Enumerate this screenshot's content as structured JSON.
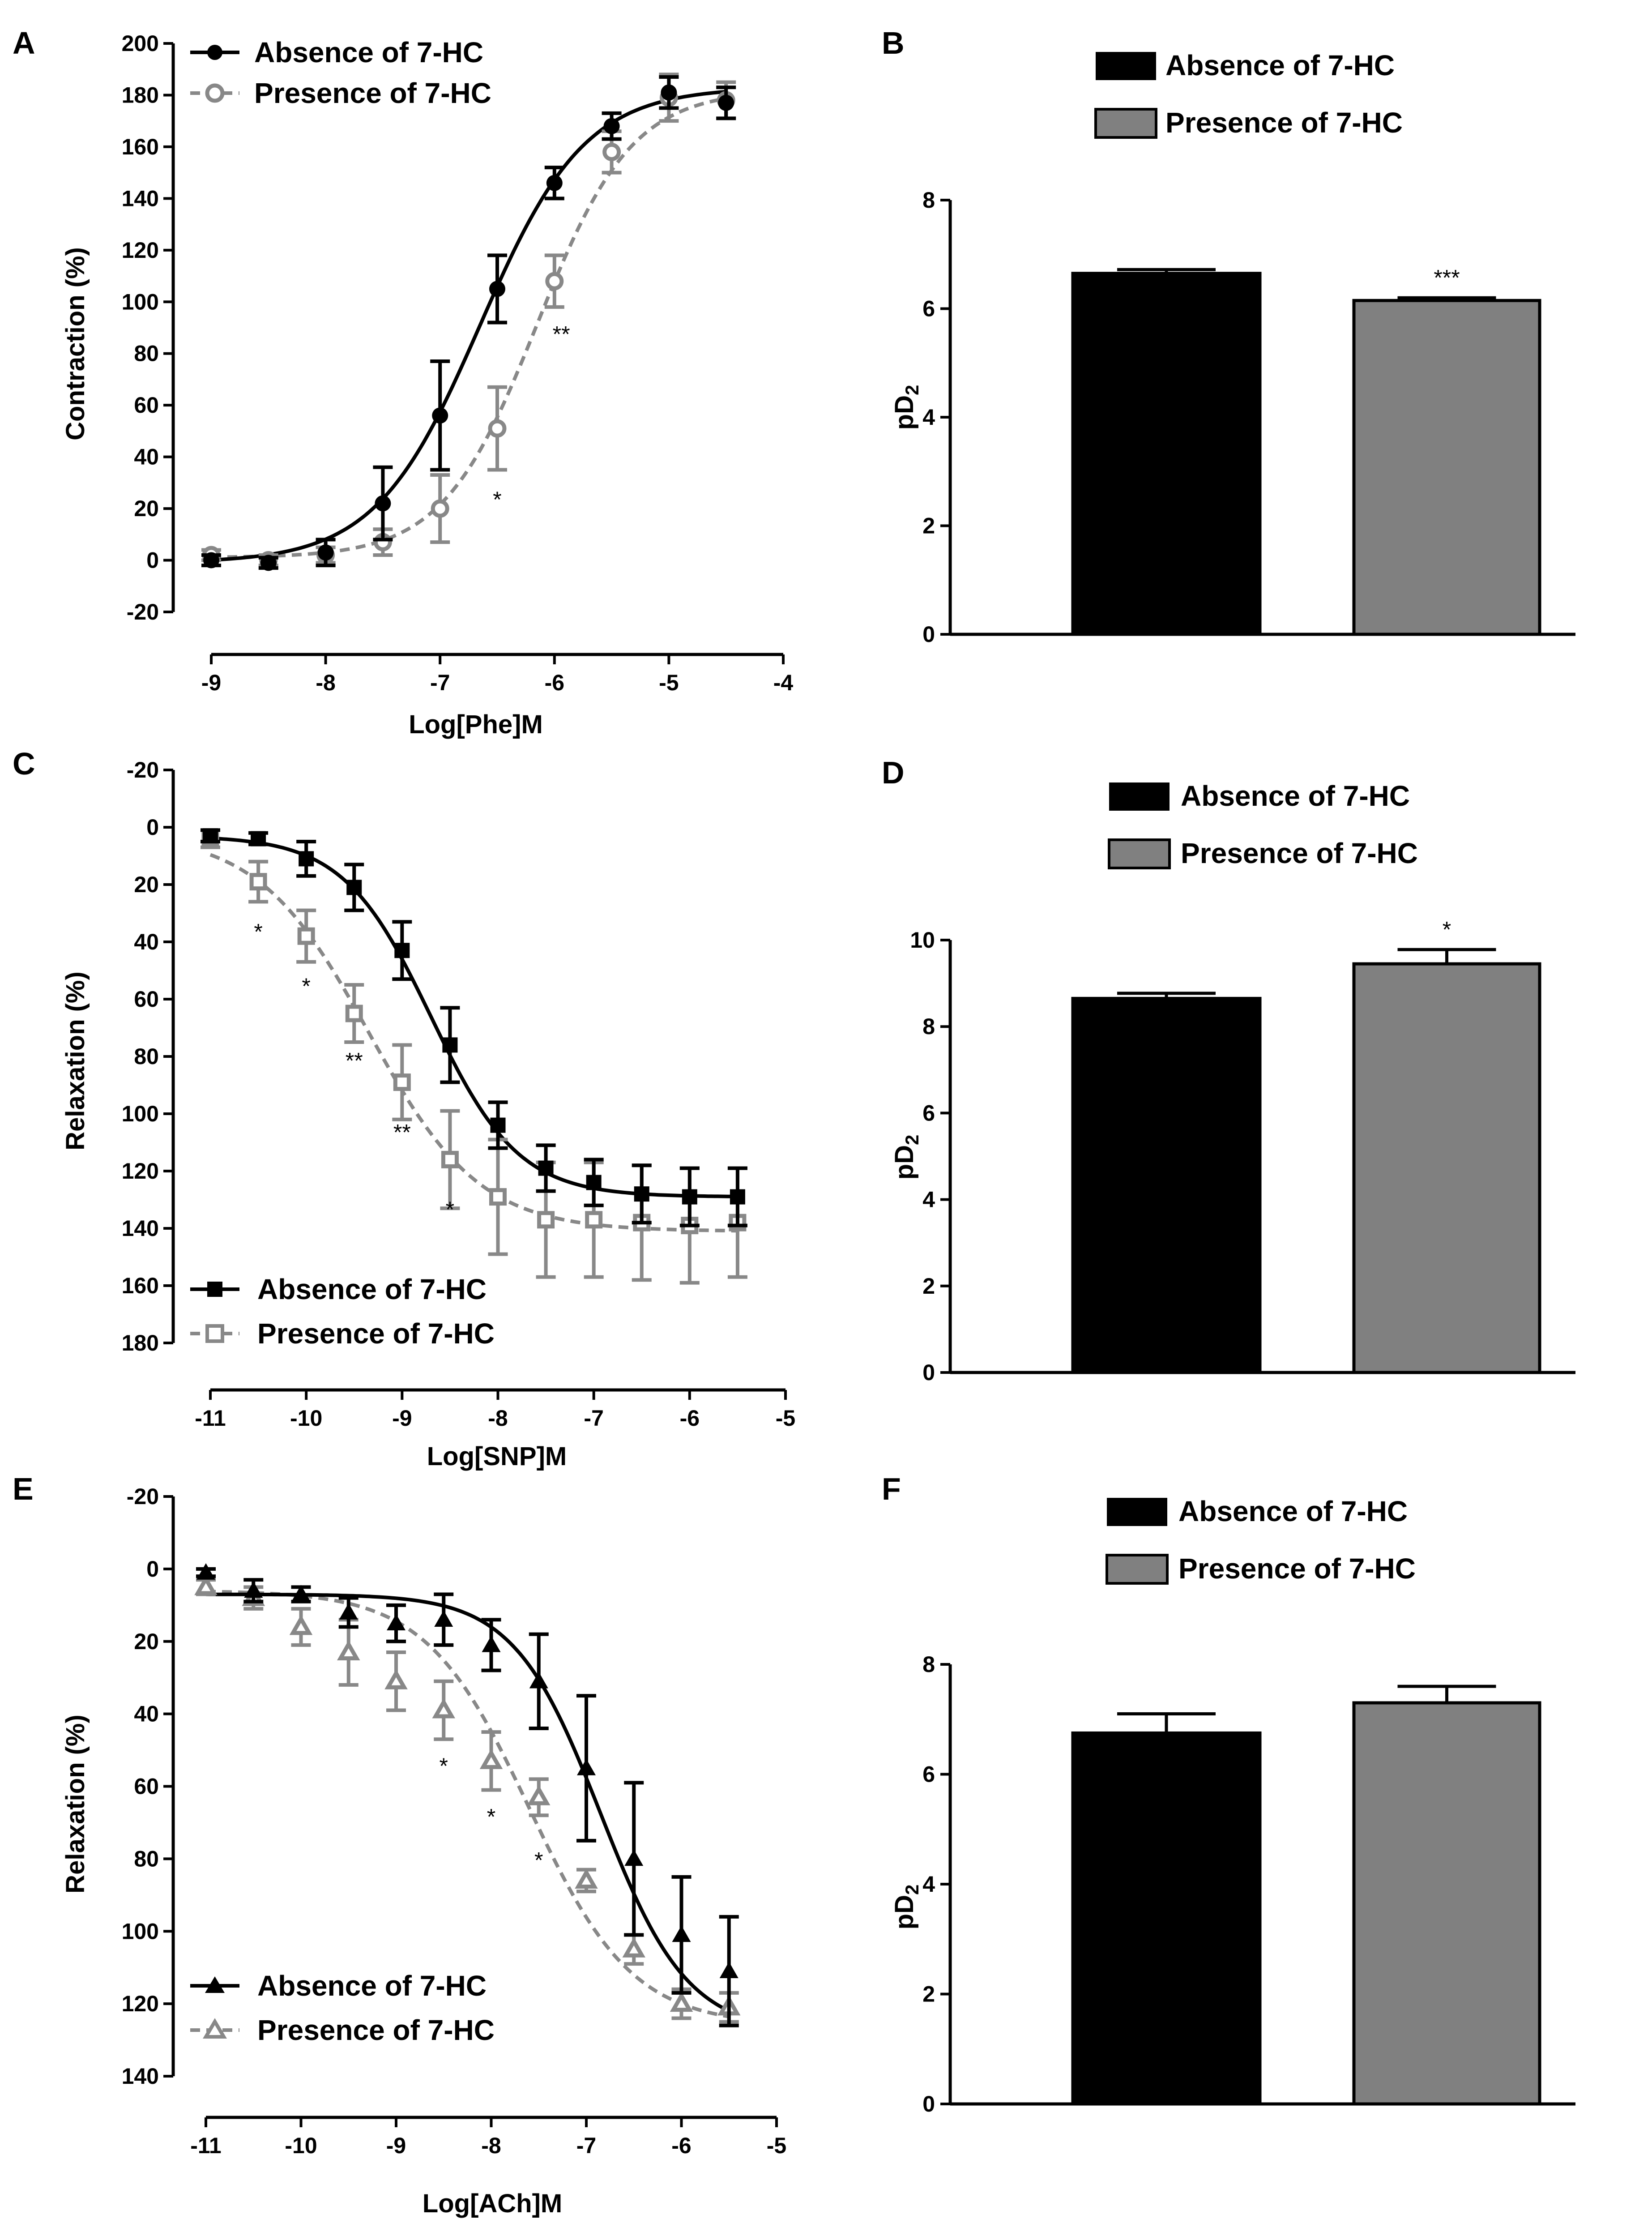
{
  "chart_data": [
    {
      "panel": "A",
      "type": "line",
      "xlabel": "Log[Phe]M",
      "ylabel": "Contraction (%)",
      "xlim": [
        -9,
        -4
      ],
      "ylim": [
        -20,
        200
      ],
      "xticks": [
        -9,
        -8,
        -7,
        -6,
        -5,
        -4
      ],
      "yticks": [
        -20,
        0,
        20,
        40,
        60,
        80,
        100,
        120,
        140,
        160,
        180,
        200
      ],
      "invert_y": false,
      "legend_position": "top-left",
      "series": [
        {
          "name": "Absence of 7-HC",
          "color": "#000000",
          "marker": "filled-circle",
          "dashed": false,
          "x": [
            -9,
            -8.5,
            -8,
            -7.5,
            -7,
            -6.5,
            -6,
            -5.5,
            -5,
            -4.5
          ],
          "y": [
            0,
            -1,
            3,
            22,
            56,
            105,
            146,
            168,
            181,
            177
          ],
          "err": [
            2,
            2,
            5,
            14,
            21,
            13,
            6,
            5,
            6,
            6
          ],
          "fit": {
            "bottom": -1,
            "top": 183,
            "logEC50": -6.65,
            "hill": 0.95
          }
        },
        {
          "name": "Presence of 7-HC",
          "color": "#888888",
          "marker": "open-circle",
          "dashed": true,
          "x": [
            -9,
            -8.5,
            -8,
            -7.5,
            -7,
            -6.5,
            -6,
            -5.5,
            -5,
            -4.5
          ],
          "y": [
            2,
            0,
            2,
            7,
            20,
            51,
            108,
            158,
            179,
            178
          ],
          "err": [
            2,
            2,
            3,
            5,
            13,
            16,
            10,
            8,
            9,
            7
          ],
          "fit": {
            "bottom": 1,
            "top": 182,
            "logEC50": -6.15,
            "hill": 1.05
          }
        }
      ],
      "annotations": [
        {
          "x": -6.5,
          "y": 24,
          "text": "*"
        },
        {
          "x": -5.94,
          "y": 88,
          "text": "**"
        }
      ]
    },
    {
      "panel": "B",
      "type": "bar",
      "ylabel": "pD2",
      "ylim": [
        0,
        8
      ],
      "yticks": [
        0,
        2,
        4,
        6,
        8
      ],
      "legend_position": "top",
      "bars": [
        {
          "name": "Absence of 7-HC",
          "value": 6.65,
          "err": 0.07,
          "color": "#000000"
        },
        {
          "name": "Presence of 7-HC",
          "value": 6.15,
          "err": 0.05,
          "color": "#808080",
          "sig": "***"
        }
      ]
    },
    {
      "panel": "C",
      "type": "line",
      "xlabel": "Log[SNP]M",
      "ylabel": "Relaxation (%)",
      "xlim": [
        -11,
        -5
      ],
      "ylim": [
        -20,
        180
      ],
      "xticks": [
        -11,
        -10,
        -9,
        -8,
        -7,
        -6,
        -5
      ],
      "yticks": [
        -20,
        0,
        20,
        40,
        60,
        80,
        100,
        120,
        140,
        160,
        180
      ],
      "invert_y": true,
      "legend_position": "bottom-left",
      "series": [
        {
          "name": "Absence of 7-HC",
          "color": "#000000",
          "marker": "filled-square",
          "dashed": false,
          "x": [
            -11,
            -10.5,
            -10,
            -9.5,
            -9,
            -8.5,
            -8,
            -7.5,
            -7,
            -6.5,
            -6,
            -5.5
          ],
          "y": [
            3,
            4,
            11,
            21,
            43,
            76,
            104,
            119,
            124,
            128,
            129,
            129
          ],
          "err": [
            2,
            2,
            6,
            8,
            10,
            13,
            8,
            8,
            8,
            10,
            10,
            10
          ],
          "fit": {
            "bottom": 3,
            "top": 129,
            "logEC50": -8.7,
            "hill": 0.95
          }
        },
        {
          "name": "Presence of 7-HC",
          "color": "#888888",
          "marker": "open-square",
          "dashed": true,
          "x": [
            -11,
            -10.5,
            -10,
            -9.5,
            -9,
            -8.5,
            -8,
            -7.5,
            -7,
            -6.5,
            -6,
            -5.5
          ],
          "y": [
            4,
            19,
            38,
            65,
            89,
            116,
            129,
            137,
            137,
            138,
            139,
            138
          ],
          "err": [
            3,
            7,
            9,
            10,
            13,
            17,
            20,
            20,
            20,
            20,
            20,
            19
          ],
          "fit": {
            "bottom": 2,
            "top": 141,
            "logEC50": -9.35,
            "hill": 0.75
          }
        }
      ],
      "annotations": [
        {
          "x": -10.5,
          "y": 36,
          "text": "*"
        },
        {
          "x": -10,
          "y": 55,
          "text": "*"
        },
        {
          "x": -9.5,
          "y": 81,
          "text": "**"
        },
        {
          "x": -9,
          "y": 106,
          "text": "**"
        },
        {
          "x": -8.5,
          "y": 133,
          "text": "*"
        }
      ]
    },
    {
      "panel": "D",
      "type": "bar",
      "ylabel": "pD2",
      "ylim": [
        0,
        10
      ],
      "yticks": [
        0,
        2,
        4,
        6,
        8,
        10
      ],
      "legend_position": "top",
      "bars": [
        {
          "name": "Absence of 7-HC",
          "value": 8.65,
          "err": 0.12,
          "color": "#000000"
        },
        {
          "name": "Presence of 7-HC",
          "value": 9.45,
          "err": 0.33,
          "color": "#808080",
          "sig": "*"
        }
      ]
    },
    {
      "panel": "E",
      "type": "line",
      "xlabel": "Log[ACh]M",
      "ylabel": "Relaxation (%)",
      "xlim": [
        -11,
        -5
      ],
      "ylim": [
        -20,
        140
      ],
      "xticks": [
        -11,
        -10,
        -9,
        -8,
        -7,
        -6,
        -5
      ],
      "yticks": [
        -20,
        0,
        20,
        40,
        60,
        80,
        100,
        120,
        140
      ],
      "invert_y": true,
      "legend_position": "bottom-left",
      "series": [
        {
          "name": "Absence of 7-HC",
          "color": "#000000",
          "marker": "filled-triangle",
          "dashed": false,
          "x": [
            -11,
            -10.5,
            -10,
            -9.5,
            -9,
            -8.5,
            -8,
            -7.5,
            -7,
            -6.5,
            -6,
            -5.5
          ],
          "y": [
            1,
            6,
            7,
            12,
            15,
            14,
            21,
            31,
            55,
            80,
            101,
            111
          ],
          "err": [
            1,
            3,
            2,
            4,
            5,
            7,
            7,
            13,
            20,
            21,
            16,
            15
          ],
          "fit": {
            "bottom": 7,
            "top": 128,
            "logEC50": -6.85,
            "hill": 0.95
          }
        },
        {
          "name": "Presence of 7-HC",
          "color": "#888888",
          "marker": "open-triangle",
          "dashed": true,
          "x": [
            -11,
            -10.5,
            -10,
            -9.5,
            -9,
            -8.5,
            -8,
            -7.5,
            -7,
            -6.5,
            -6,
            -5.5
          ],
          "y": [
            5,
            8,
            16,
            23,
            31,
            39,
            53,
            63,
            86,
            105,
            120,
            121
          ],
          "err": [
            2,
            3,
            5,
            9,
            8,
            8,
            8,
            5,
            3,
            4,
            4,
            4
          ],
          "fit": {
            "bottom": 6,
            "top": 126,
            "logEC50": -7.6,
            "hill": 0.8
          }
        }
      ],
      "annotations": [
        {
          "x": -8.5,
          "y": 54,
          "text": "*"
        },
        {
          "x": -8,
          "y": 68,
          "text": "*"
        },
        {
          "x": -7.5,
          "y": 80,
          "text": "*"
        }
      ]
    },
    {
      "panel": "F",
      "type": "bar",
      "ylabel": "pD2",
      "ylim": [
        0,
        8
      ],
      "yticks": [
        0,
        2,
        4,
        6,
        8
      ],
      "legend_position": "top",
      "bars": [
        {
          "name": "Absence of 7-HC",
          "value": 6.75,
          "err": 0.35,
          "color": "#000000"
        },
        {
          "name": "Presence of 7-HC",
          "value": 7.3,
          "err": 0.3,
          "color": "#808080"
        }
      ]
    }
  ]
}
